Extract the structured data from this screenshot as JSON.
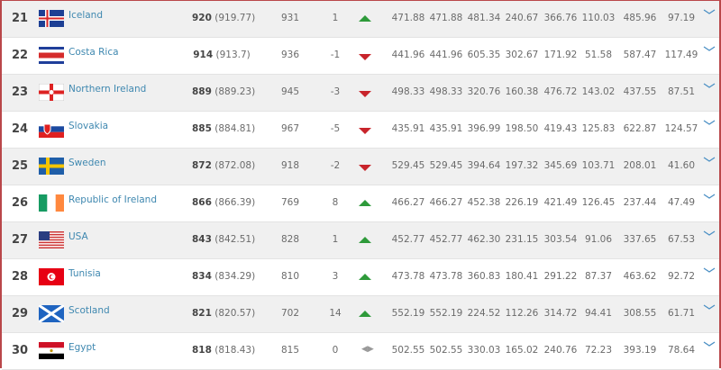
{
  "colors": {
    "up": "#2e9a3a",
    "down": "#c8242b",
    "link": "#3f88b0",
    "border": "#b9474a"
  },
  "rows": [
    {
      "rank": "21",
      "country": "Iceland",
      "flag": "IS",
      "points": "920",
      "points_exact": "(919.77)",
      "prev": "931",
      "change": "1",
      "trend": "up",
      "values": [
        "471.88",
        "471.88",
        "481.34",
        "240.67",
        "366.76",
        "110.03",
        "485.96",
        "97.19"
      ]
    },
    {
      "rank": "22",
      "country": "Costa Rica",
      "flag": "CR",
      "points": "914",
      "points_exact": "(913.7)",
      "prev": "936",
      "change": "-1",
      "trend": "down",
      "values": [
        "441.96",
        "441.96",
        "605.35",
        "302.67",
        "171.92",
        "51.58",
        "587.47",
        "117.49"
      ]
    },
    {
      "rank": "23",
      "country": "Northern Ireland",
      "flag": "NI",
      "points": "889",
      "points_exact": "(889.23)",
      "prev": "945",
      "change": "-3",
      "trend": "down",
      "values": [
        "498.33",
        "498.33",
        "320.76",
        "160.38",
        "476.72",
        "143.02",
        "437.55",
        "87.51"
      ]
    },
    {
      "rank": "24",
      "country": "Slovakia",
      "flag": "SK",
      "points": "885",
      "points_exact": "(884.81)",
      "prev": "967",
      "change": "-5",
      "trend": "down",
      "values": [
        "435.91",
        "435.91",
        "396.99",
        "198.50",
        "419.43",
        "125.83",
        "622.87",
        "124.57"
      ]
    },
    {
      "rank": "25",
      "country": "Sweden",
      "flag": "SE",
      "points": "872",
      "points_exact": "(872.08)",
      "prev": "918",
      "change": "-2",
      "trend": "down",
      "values": [
        "529.45",
        "529.45",
        "394.64",
        "197.32",
        "345.69",
        "103.71",
        "208.01",
        "41.60"
      ]
    },
    {
      "rank": "26",
      "country": "Republic of Ireland",
      "flag": "IE",
      "points": "866",
      "points_exact": "(866.39)",
      "prev": "769",
      "change": "8",
      "trend": "up",
      "values": [
        "466.27",
        "466.27",
        "452.38",
        "226.19",
        "421.49",
        "126.45",
        "237.44",
        "47.49"
      ]
    },
    {
      "rank": "27",
      "country": "USA",
      "flag": "US",
      "points": "843",
      "points_exact": "(842.51)",
      "prev": "828",
      "change": "1",
      "trend": "up",
      "values": [
        "452.77",
        "452.77",
        "462.30",
        "231.15",
        "303.54",
        "91.06",
        "337.65",
        "67.53"
      ]
    },
    {
      "rank": "28",
      "country": "Tunisia",
      "flag": "TN",
      "points": "834",
      "points_exact": "(834.29)",
      "prev": "810",
      "change": "3",
      "trend": "up",
      "values": [
        "473.78",
        "473.78",
        "360.83",
        "180.41",
        "291.22",
        "87.37",
        "463.62",
        "92.72"
      ]
    },
    {
      "rank": "29",
      "country": "Scotland",
      "flag": "SCO",
      "points": "821",
      "points_exact": "(820.57)",
      "prev": "702",
      "change": "14",
      "trend": "up",
      "values": [
        "552.19",
        "552.19",
        "224.52",
        "112.26",
        "314.72",
        "94.41",
        "308.55",
        "61.71"
      ]
    },
    {
      "rank": "30",
      "country": "Egypt",
      "flag": "EG",
      "points": "818",
      "points_exact": "(818.43)",
      "prev": "815",
      "change": "0",
      "trend": "same",
      "values": [
        "502.55",
        "502.55",
        "330.03",
        "165.02",
        "240.76",
        "72.23",
        "393.19",
        "78.64"
      ]
    }
  ]
}
